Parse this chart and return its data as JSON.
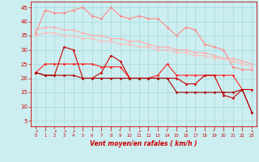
{
  "x": [
    0,
    1,
    2,
    3,
    4,
    5,
    6,
    7,
    8,
    9,
    10,
    11,
    12,
    13,
    14,
    15,
    16,
    17,
    18,
    19,
    20,
    21,
    22,
    23
  ],
  "line1": [
    36,
    44,
    43,
    43,
    44,
    45,
    42,
    41,
    45,
    42,
    41,
    42,
    41,
    41,
    38,
    35,
    38,
    37,
    32,
    31,
    30,
    24,
    23,
    23
  ],
  "line2": [
    37,
    38,
    38,
    37,
    37,
    36,
    35,
    35,
    34,
    34,
    33,
    33,
    32,
    31,
    31,
    30,
    30,
    29,
    29,
    28,
    27,
    27,
    26,
    25
  ],
  "line3": [
    35,
    36,
    36,
    35,
    35,
    34,
    34,
    33,
    33,
    32,
    32,
    31,
    31,
    30,
    30,
    29,
    29,
    28,
    28,
    27,
    27,
    26,
    25,
    24
  ],
  "line4": [
    22,
    25,
    25,
    25,
    25,
    25,
    25,
    24,
    24,
    24,
    20,
    20,
    20,
    21,
    25,
    21,
    21,
    21,
    21,
    21,
    21,
    21,
    16,
    8
  ],
  "line5": [
    22,
    21,
    21,
    31,
    30,
    20,
    20,
    22,
    28,
    26,
    20,
    20,
    20,
    20,
    20,
    20,
    18,
    18,
    21,
    21,
    14,
    13,
    16,
    16
  ],
  "line6": [
    22,
    21,
    21,
    21,
    21,
    20,
    20,
    20,
    20,
    20,
    20,
    20,
    20,
    20,
    20,
    15,
    15,
    15,
    15,
    15,
    15,
    15,
    16,
    8
  ],
  "background_color": "#cceef0",
  "grid_color": "#aadddd",
  "line1_color": "#ff8888",
  "line2_color": "#ffaaaa",
  "line3_color": "#ffbbbb",
  "line4_color": "#ff2222",
  "line5_color": "#cc0000",
  "line6_color": "#aa0000",
  "xlabel": "Vent moyen/en rafales ( km/h )",
  "ylabel_ticks": [
    5,
    10,
    15,
    20,
    25,
    30,
    35,
    40,
    45
  ],
  "ylim": [
    3,
    47
  ],
  "xlim": [
    -0.5,
    23.5
  ],
  "markersize": 1.8,
  "linewidth": 0.8
}
